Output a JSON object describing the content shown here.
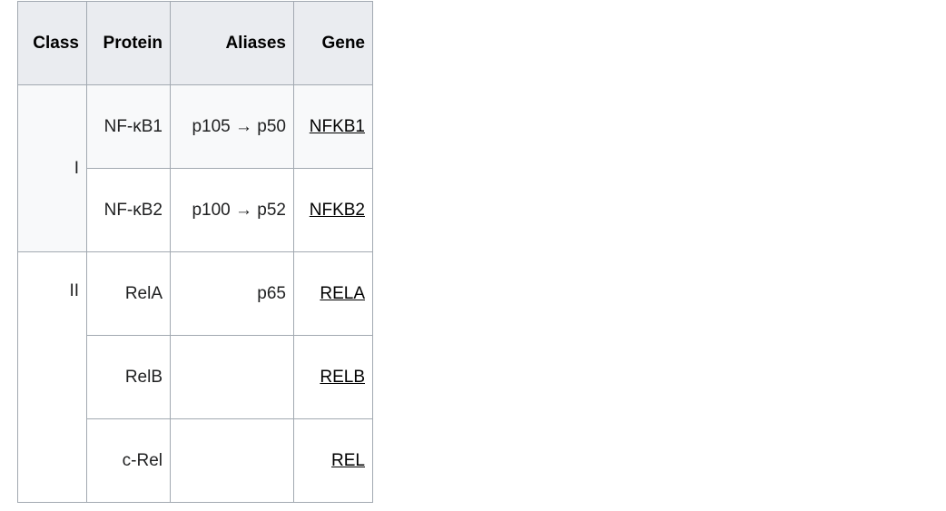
{
  "headers": [
    "Class",
    "Protein",
    "Aliases",
    "Gene"
  ],
  "classes": [
    "I",
    "II"
  ],
  "rows": [
    {
      "protein": "NF-κB1",
      "aliases": "p105 → p50",
      "gene": "NFKB1"
    },
    {
      "protein": "NF-κB2",
      "aliases": "p100 → p52",
      "gene": "NFKB2"
    },
    {
      "protein": "RelA",
      "aliases": "p65",
      "gene": "RELA"
    },
    {
      "protein": "RelB",
      "aliases": "",
      "gene": "RELB"
    },
    {
      "protein": "c-Rel",
      "aliases": "",
      "gene": "REL"
    }
  ]
}
